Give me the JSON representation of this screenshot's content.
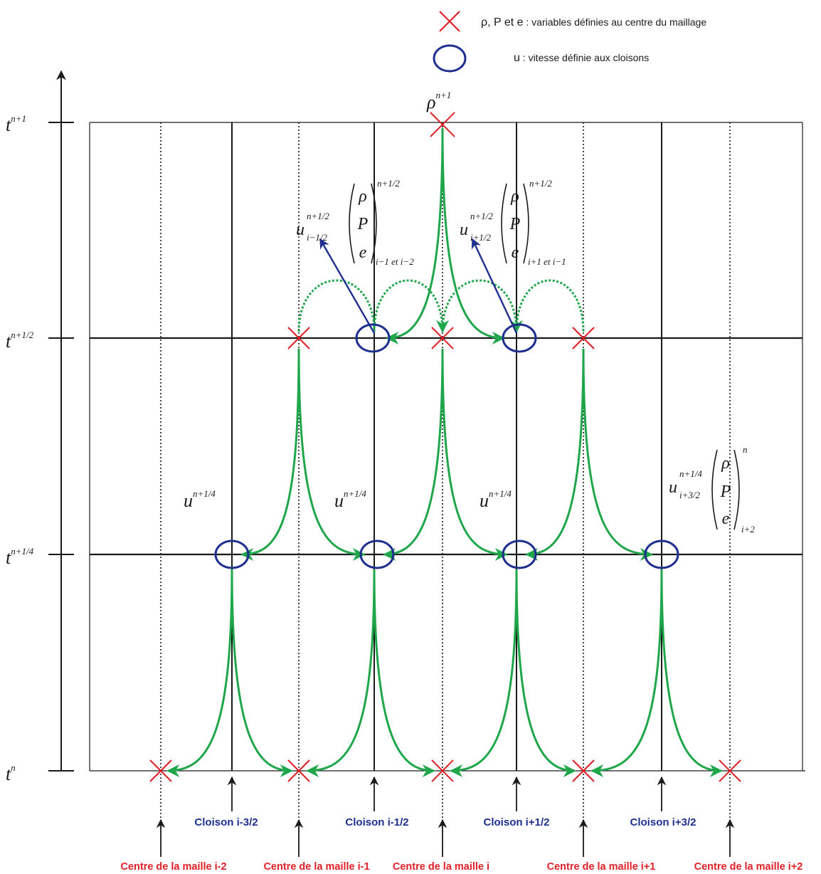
{
  "colors": {
    "grid": "#1a1a1a",
    "green": "#1fa64a",
    "blue": "#1f2f8f",
    "red": "#e01f26",
    "blue_text": "#1f2f8f",
    "red_text": "#e01f26"
  },
  "legend": {
    "cross_text_vars": "ρ, P et e",
    "cross_text_desc": " : variables définies au centre du maillage",
    "circle_text_var": "u",
    "circle_text_desc": " : vitesse définie aux cloisons"
  },
  "time_axis": {
    "labels": [
      {
        "base": "t",
        "sup": "n+1"
      },
      {
        "base": "t",
        "sup": "n+1/2"
      },
      {
        "base": "t",
        "sup": "n+1/4"
      },
      {
        "base": "t",
        "sup": "n"
      }
    ]
  },
  "cloisons": [
    "Cloison i-3/2",
    "Cloison i-1/2",
    "Cloison i+1/2",
    "Cloison i+3/2"
  ],
  "centres": [
    "Centre de la maille i-2",
    "Centre de la maille i-1",
    "Centre de la maille i",
    "Centre de la maille i+1",
    "Centre de la maille i+2"
  ],
  "annotations": {
    "rho_top": {
      "base": "ρ",
      "sup": "n+1"
    },
    "u_quarter_1": {
      "base": "u",
      "sup": "n+1/4"
    },
    "u_quarter_2": {
      "base": "u",
      "sup": "n+1/4"
    },
    "u_quarter_3": {
      "base": "u",
      "sup": "n+1/4"
    },
    "vec_left": {
      "u_base": "u",
      "u_sup": "n+1/2",
      "u_sub": "i−1/2",
      "rows": [
        "ρ",
        "P",
        "e"
      ],
      "sup": "n+1/2",
      "sub": "i−1 et i−2"
    },
    "vec_mid": {
      "u_base": "u",
      "u_sup": "n+1/2",
      "u_sub": "i+1/2",
      "rows": [
        "ρ",
        "P",
        "e"
      ],
      "sup": "n+1/2",
      "sub": "i+1 et i−1"
    },
    "vec_right": {
      "u_base": "u",
      "u_sup": "n+1/4",
      "u_sub": "i+3/2",
      "rows": [
        "ρ",
        "P",
        "e"
      ],
      "sup": "n",
      "sub": "i+2"
    }
  }
}
